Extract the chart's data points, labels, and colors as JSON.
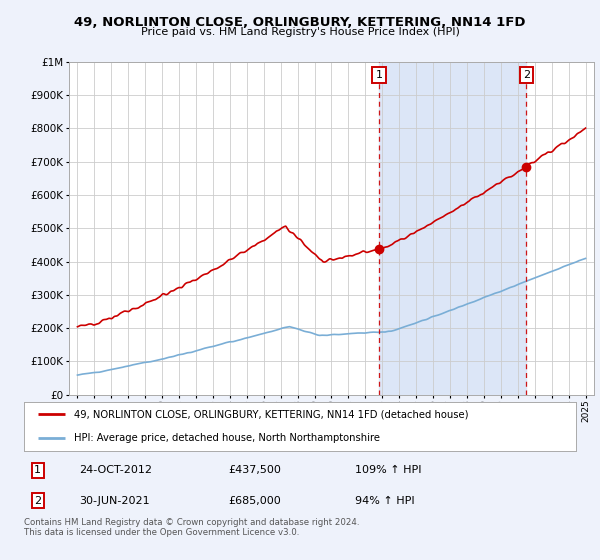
{
  "title": "49, NORLINTON CLOSE, ORLINGBURY, KETTERING, NN14 1FD",
  "subtitle": "Price paid vs. HM Land Registry's House Price Index (HPI)",
  "red_label": "49, NORLINTON CLOSE, ORLINGBURY, KETTERING, NN14 1FD (detached house)",
  "blue_label": "HPI: Average price, detached house, North Northamptonshire",
  "transaction1": {
    "num": "1",
    "date": "24-OCT-2012",
    "price": "£437,500",
    "pct": "109% ↑ HPI"
  },
  "transaction2": {
    "num": "2",
    "date": "30-JUN-2021",
    "price": "£685,000",
    "pct": "94% ↑ HPI"
  },
  "footnote": "Contains HM Land Registry data © Crown copyright and database right 2024.\nThis data is licensed under the Open Government Licence v3.0.",
  "vline1_x": 2012.81,
  "vline2_x": 2021.5,
  "marker1_y": 437500,
  "marker2_y": 685000,
  "ylim": [
    0,
    1000000
  ],
  "xlim": [
    1994.5,
    2025.5
  ],
  "bg_color": "#eef2fb",
  "plot_bg": "#ffffff",
  "span_color": "#dce6f7",
  "red_color": "#cc0000",
  "blue_color": "#7aaed6",
  "grid_color": "#cccccc"
}
